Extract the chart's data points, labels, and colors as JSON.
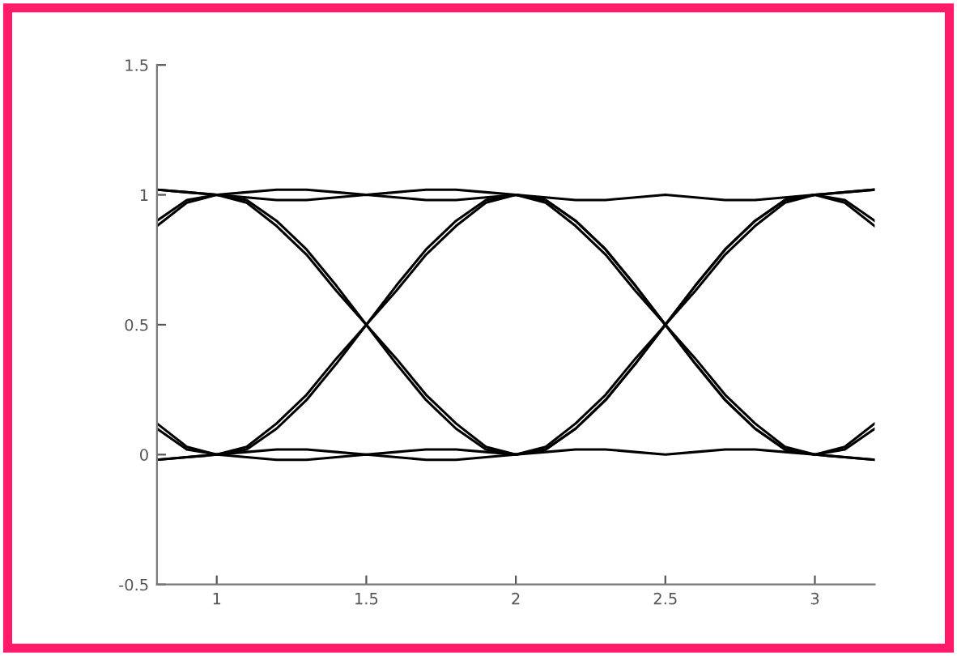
{
  "chart_data": {
    "type": "line",
    "x": [
      0.8,
      0.9,
      1.0,
      1.1,
      1.2,
      1.3,
      1.4,
      1.5,
      1.6,
      1.7,
      1.8,
      1.9,
      2.0,
      2.1,
      2.2,
      2.3,
      2.4,
      2.5,
      2.6,
      2.7,
      2.8,
      2.9,
      3.0,
      3.1,
      3.2
    ],
    "series": [
      {
        "color": "#000000",
        "values": [
          1.02,
          1.01,
          1,
          0.98,
          0.9,
          0.79,
          0.65,
          0.5,
          0.35,
          0.21,
          0.1,
          0.02,
          0,
          0.02,
          0.1,
          0.21,
          0.35,
          0.5,
          0.65,
          0.79,
          0.9,
          0.98,
          1,
          1.01,
          1.02
        ]
      },
      {
        "color": "#000000",
        "values": [
          -0.02,
          -0.01,
          0,
          0.02,
          0.1,
          0.21,
          0.35,
          0.5,
          0.65,
          0.79,
          0.9,
          0.98,
          1,
          0.98,
          0.9,
          0.79,
          0.65,
          0.5,
          0.35,
          0.21,
          0.1,
          0.02,
          0,
          -0.01,
          -0.02
        ]
      },
      {
        "color": "#000000",
        "values": [
          0.88,
          0.97,
          1,
          0.97,
          0.88,
          0.77,
          0.63,
          0.5,
          0.37,
          0.23,
          0.12,
          0.03,
          0,
          0.03,
          0.12,
          0.23,
          0.37,
          0.5,
          0.63,
          0.77,
          0.88,
          0.97,
          1,
          0.97,
          0.88
        ]
      },
      {
        "color": "#000000",
        "values": [
          0.12,
          0.03,
          0,
          0.03,
          0.12,
          0.23,
          0.37,
          0.5,
          0.63,
          0.77,
          0.88,
          0.97,
          1,
          0.97,
          0.88,
          0.77,
          0.63,
          0.5,
          0.37,
          0.23,
          0.12,
          0.03,
          0,
          0.03,
          0.12
        ]
      },
      {
        "color": "#000000",
        "values": [
          1.02,
          1.01,
          1,
          1.01,
          1.02,
          1.02,
          1.01,
          1,
          1.01,
          1.02,
          1.02,
          1.01,
          1,
          0.98,
          0.9,
          0.79,
          0.65,
          0.5,
          0.35,
          0.21,
          0.1,
          0.02,
          0,
          -0.01,
          -0.02
        ]
      },
      {
        "color": "#000000",
        "values": [
          -0.02,
          -0.01,
          0,
          -0.01,
          -0.02,
          -0.02,
          -0.01,
          0,
          -0.01,
          -0.02,
          -0.02,
          -0.01,
          0,
          0.02,
          0.1,
          0.21,
          0.35,
          0.5,
          0.65,
          0.79,
          0.9,
          0.98,
          1,
          1.01,
          1.02
        ]
      },
      {
        "color": "#000000",
        "values": [
          0.9,
          0.98,
          1,
          0.99,
          0.98,
          0.98,
          0.99,
          1,
          0.99,
          0.98,
          0.98,
          0.99,
          1,
          0.99,
          0.98,
          0.98,
          0.99,
          1,
          0.99,
          0.98,
          0.98,
          0.99,
          1,
          0.98,
          0.9
        ]
      },
      {
        "color": "#000000",
        "values": [
          0.1,
          0.02,
          0,
          0.01,
          0.02,
          0.02,
          0.01,
          0,
          0.01,
          0.02,
          0.02,
          0.01,
          0,
          0.01,
          0.02,
          0.02,
          0.01,
          0,
          0.01,
          0.02,
          0.02,
          0.01,
          0,
          0.02,
          0.1
        ]
      }
    ],
    "xlim": [
      0.8,
      3.2
    ],
    "ylim": [
      -0.5,
      1.5
    ],
    "xticks": [
      1,
      1.5,
      2,
      2.5,
      3
    ],
    "yticks": [
      -0.5,
      0,
      0.5,
      1,
      1.5
    ],
    "grid": false,
    "legend": false,
    "marker": "none",
    "line_style": "solid"
  }
}
